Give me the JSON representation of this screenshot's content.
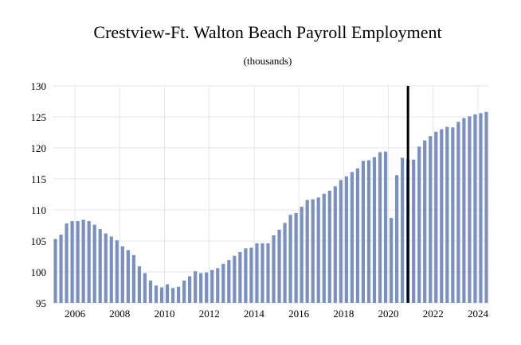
{
  "chart_data": {
    "type": "bar",
    "title": "Crestview-Ft. Walton Beach Payroll Employment",
    "subtitle": "(thousands)",
    "xlabel": "",
    "ylabel": "",
    "ylim": [
      95,
      130
    ],
    "yticks": [
      "95",
      "100",
      "105",
      "110",
      "115",
      "120",
      "125",
      "130"
    ],
    "xticks": [
      "2006",
      "2008",
      "2010",
      "2012",
      "2014",
      "2016",
      "2018",
      "2020",
      "2022",
      "2024"
    ],
    "grid": true,
    "forecast_marker": "2020 Q4",
    "bar_color": "#7a91c0",
    "marker_color": "#000000",
    "categories": [
      "2005 Q1",
      "2005 Q2",
      "2005 Q3",
      "2005 Q4",
      "2006 Q1",
      "2006 Q2",
      "2006 Q3",
      "2006 Q4",
      "2007 Q1",
      "2007 Q2",
      "2007 Q3",
      "2007 Q4",
      "2008 Q1",
      "2008 Q2",
      "2008 Q3",
      "2008 Q4",
      "2009 Q1",
      "2009 Q2",
      "2009 Q3",
      "2009 Q4",
      "2010 Q1",
      "2010 Q2",
      "2010 Q3",
      "2010 Q4",
      "2011 Q1",
      "2011 Q2",
      "2011 Q3",
      "2011 Q4",
      "2012 Q1",
      "2012 Q2",
      "2012 Q3",
      "2012 Q4",
      "2013 Q1",
      "2013 Q2",
      "2013 Q3",
      "2013 Q4",
      "2014 Q1",
      "2014 Q2",
      "2014 Q3",
      "2014 Q4",
      "2015 Q1",
      "2015 Q2",
      "2015 Q3",
      "2015 Q4",
      "2016 Q1",
      "2016 Q2",
      "2016 Q3",
      "2016 Q4",
      "2017 Q1",
      "2017 Q2",
      "2017 Q3",
      "2017 Q4",
      "2018 Q1",
      "2018 Q2",
      "2018 Q3",
      "2018 Q4",
      "2019 Q1",
      "2019 Q2",
      "2019 Q3",
      "2019 Q4",
      "2020 Q1",
      "2020 Q2",
      "2020 Q3",
      "2020 Q4",
      "2021 Q1",
      "2021 Q2",
      "2021 Q3",
      "2021 Q4",
      "2022 Q1",
      "2022 Q2",
      "2022 Q3",
      "2022 Q4",
      "2023 Q1",
      "2023 Q2",
      "2023 Q3",
      "2023 Q4",
      "2024 Q1",
      "2024 Q2"
    ],
    "values": [
      105.3,
      106.0,
      107.8,
      108.2,
      108.2,
      108.4,
      108.2,
      107.6,
      106.9,
      106.2,
      105.7,
      105.1,
      104.1,
      103.5,
      102.7,
      100.9,
      99.8,
      98.6,
      97.8,
      97.5,
      98.0,
      97.4,
      97.6,
      98.6,
      99.3,
      100.1,
      99.8,
      99.9,
      100.3,
      100.6,
      101.3,
      101.9,
      102.6,
      103.2,
      103.8,
      103.9,
      104.6,
      104.6,
      104.6,
      105.9,
      106.8,
      107.9,
      109.2,
      109.5,
      110.5,
      111.6,
      111.7,
      112.0,
      112.6,
      113.1,
      113.8,
      114.8,
      115.4,
      116.1,
      116.7,
      117.9,
      118.0,
      118.5,
      119.3,
      119.4,
      108.7,
      115.6,
      118.4,
      118.1,
      118.1,
      120.2,
      121.2,
      121.9,
      122.6,
      123.0,
      123.4,
      123.3,
      124.2,
      124.8,
      125.1,
      125.4,
      125.6,
      125.8
    ]
  }
}
